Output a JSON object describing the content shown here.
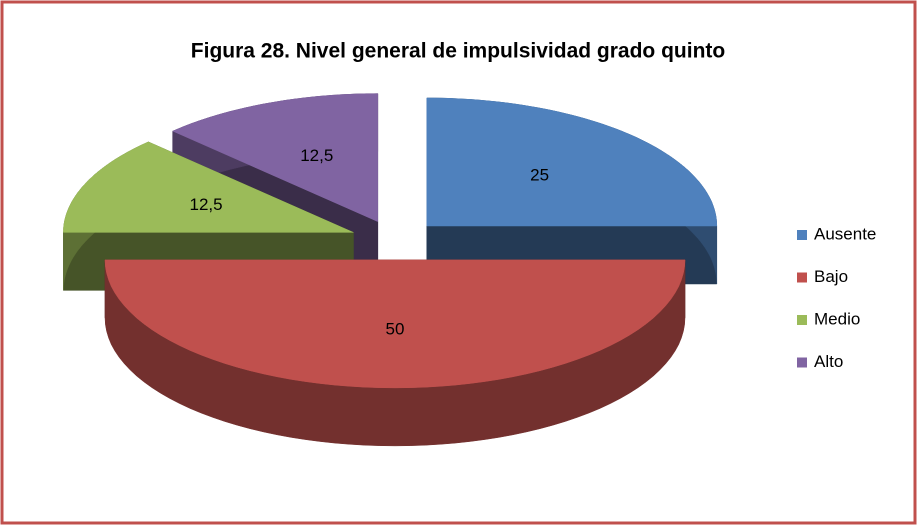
{
  "chart_data": {
    "type": "pie3d",
    "title": "Figura 28. Nivel general de impulsividad grado quinto",
    "categories": [
      "Ausente",
      "Bajo",
      "Medio",
      "Alto"
    ],
    "values": [
      25,
      50,
      12.5,
      12.5
    ],
    "value_labels": [
      "25",
      "50",
      "12,5",
      "12,5"
    ],
    "colors": [
      "#4f81bd",
      "#c0504d",
      "#9bbb59",
      "#8064a2"
    ],
    "legend": "right"
  }
}
